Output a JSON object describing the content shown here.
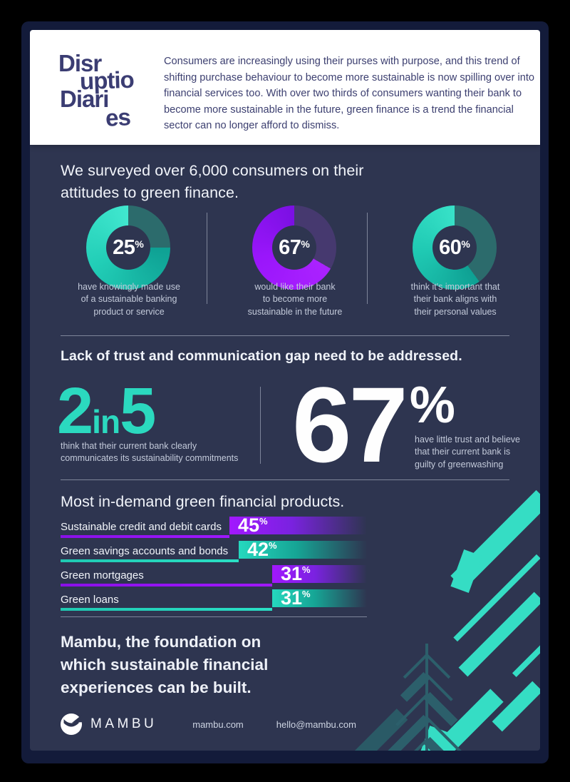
{
  "header": {
    "logo": {
      "full_name": "Disruption Diaries",
      "line1": "Disr",
      "line2": "uptio",
      "line3": "Diari",
      "line4": "es"
    },
    "paragraph": "Consumers are increasingly using their purses with purpose, and this trend of shifting purchase behaviour to become more sustainable is now spilling over into financial services too. With over two thirds of consumers wanting their bank to become more sustainable in the future, green finance is a trend the financial sector can no longer afford to dismiss."
  },
  "survey": {
    "heading": "We surveyed over 6,000 consumers on their\nattitudes to green finance.",
    "donuts": [
      {
        "value": "25",
        "unit": "%",
        "caption": "have knowingly made use\nof a sustainable banking\nproduct or service",
        "dim_deg": 90,
        "dim_color": "#2c6b6c",
        "bright_start": "#0ea093",
        "bright_mid": "#21cdb6",
        "bright_end": "#41e8cf"
      },
      {
        "value": "67",
        "unit": "%",
        "caption": "would like their bank\nto become more\nsustainable in the future",
        "dim_deg": 120,
        "dim_color": "#46396f",
        "bright_start": "#ab22ff",
        "bright_mid": "#9a16fb",
        "bright_end": "#7b10e3"
      },
      {
        "value": "60",
        "unit": "%",
        "caption": "think it's important that\ntheir bank aligns with\ntheir personal values",
        "dim_deg": 144,
        "dim_color": "#2c6b6c",
        "bright_start": "#0ea093",
        "bright_mid": "#1fc9b3",
        "bright_end": "#38e2c8"
      }
    ]
  },
  "trust": {
    "heading": "Lack of trust and communication gap need to be addressed.",
    "ratio": {
      "big1": "2",
      "mid": "in",
      "big2": "5",
      "caption": "think that their current bank clearly\ncommunicates its sustainability commitments"
    },
    "percent": {
      "number": "67",
      "unit": "%",
      "caption": "have little trust and believe\nthat their current bank is\nguilty of greenwashing"
    }
  },
  "products": {
    "heading": "Most in-demand green financial products.",
    "bars": [
      {
        "label": "Sustainable credit and debit cards",
        "value": 45,
        "unit": "%",
        "scheme": "purple"
      },
      {
        "label": "Green savings accounts and bonds",
        "value": 42,
        "unit": "%",
        "scheme": "teal"
      },
      {
        "label": "Green mortgages",
        "value": 31,
        "unit": "%",
        "scheme": "purple"
      },
      {
        "label": "Green loans",
        "value": 31,
        "unit": "%",
        "scheme": "teal"
      }
    ]
  },
  "footer": {
    "heading": "Mambu, the foundation on\nwhich sustainable financial\nexperiences can be built.",
    "brand": "MAMBU",
    "website": "mambu.com",
    "email": "hello@mambu.com"
  },
  "colors": {
    "background": "#2e3550",
    "frame": "#131b3a",
    "teal": "#2bd9bf",
    "purple": "#9b16ff",
    "card": "#ffffff",
    "ink": "#3b3d73"
  },
  "chart_data": [
    {
      "type": "pie",
      "variant": "donut",
      "unit": "%",
      "value": 25,
      "remainder": 75,
      "color": "teal",
      "label": "have knowingly made use of a sustainable banking product or service"
    },
    {
      "type": "pie",
      "variant": "donut",
      "unit": "%",
      "value": 67,
      "remainder": 33,
      "color": "purple",
      "label": "would like their bank to become more sustainable in the future"
    },
    {
      "type": "pie",
      "variant": "donut",
      "unit": "%",
      "value": 60,
      "remainder": 40,
      "color": "teal",
      "label": "think it's important that their bank aligns with their personal values"
    },
    {
      "type": "bar",
      "orientation": "horizontal",
      "title": "Most in-demand green financial products.",
      "unit": "%",
      "categories": [
        "Sustainable credit and debit cards",
        "Green savings accounts and bonds",
        "Green mortgages",
        "Green loans"
      ],
      "values": [
        45,
        42,
        31,
        31
      ]
    }
  ]
}
